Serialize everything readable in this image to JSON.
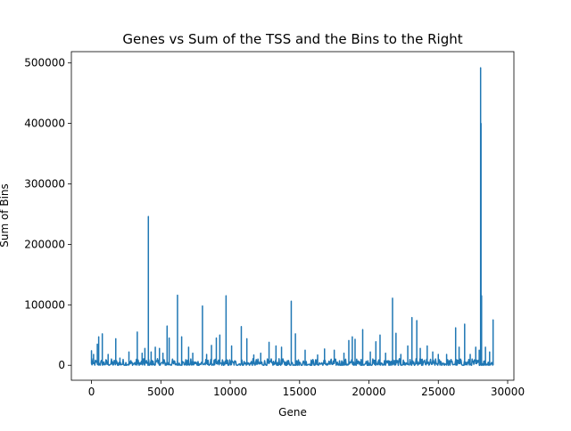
{
  "chart_data": {
    "type": "line",
    "title": "Genes vs Sum of the TSS and the Bins to the Right",
    "xlabel": "Gene",
    "ylabel": "Sum of Bins",
    "xlim": [
      -1450,
      30450
    ],
    "ylim": [
      -24700,
      518700
    ],
    "x_ticks": [
      0,
      5000,
      10000,
      15000,
      20000,
      25000,
      30000
    ],
    "x_tick_labels": [
      "0",
      "5000",
      "10000",
      "15000",
      "20000",
      "25000",
      "30000"
    ],
    "y_ticks": [
      0,
      100000,
      200000,
      300000,
      400000,
      500000
    ],
    "y_tick_labels": [
      "0",
      "100000",
      "200000",
      "300000",
      "400000",
      "500000"
    ],
    "grid": false,
    "series": [
      {
        "color": "#1f77b4",
        "baseline": 3000,
        "noise_range": [
          0,
          11000
        ],
        "x_range": [
          0,
          28960
        ],
        "spikes": [
          [
            0,
            24000
          ],
          [
            150,
            18000
          ],
          [
            420,
            35000
          ],
          [
            520,
            47000
          ],
          [
            780,
            52000
          ],
          [
            1200,
            18000
          ],
          [
            1750,
            44000
          ],
          [
            2050,
            12000
          ],
          [
            2700,
            22000
          ],
          [
            3300,
            55000
          ],
          [
            3650,
            20000
          ],
          [
            3850,
            28000
          ],
          [
            4100,
            246000
          ],
          [
            4300,
            22000
          ],
          [
            4600,
            30000
          ],
          [
            4900,
            28000
          ],
          [
            5150,
            20000
          ],
          [
            5450,
            65000
          ],
          [
            5600,
            45000
          ],
          [
            6200,
            116000
          ],
          [
            6500,
            47000
          ],
          [
            7000,
            30000
          ],
          [
            7300,
            20000
          ],
          [
            8000,
            98000
          ],
          [
            8300,
            18000
          ],
          [
            8650,
            33000
          ],
          [
            9000,
            45000
          ],
          [
            9250,
            50000
          ],
          [
            9700,
            115000
          ],
          [
            10100,
            32000
          ],
          [
            10800,
            64000
          ],
          [
            11200,
            44000
          ],
          [
            11700,
            17000
          ],
          [
            12200,
            20000
          ],
          [
            12800,
            38000
          ],
          [
            13300,
            32000
          ],
          [
            13700,
            30000
          ],
          [
            14400,
            106000
          ],
          [
            14700,
            52000
          ],
          [
            15400,
            25000
          ],
          [
            16300,
            17000
          ],
          [
            16800,
            27000
          ],
          [
            17500,
            25000
          ],
          [
            18200,
            20000
          ],
          [
            18550,
            41000
          ],
          [
            18800,
            47000
          ],
          [
            19000,
            43000
          ],
          [
            19550,
            59000
          ],
          [
            20100,
            22000
          ],
          [
            20500,
            39000
          ],
          [
            20800,
            50000
          ],
          [
            21200,
            20000
          ],
          [
            21700,
            111000
          ],
          [
            21950,
            53000
          ],
          [
            22300,
            18000
          ],
          [
            22800,
            32000
          ],
          [
            23100,
            79000
          ],
          [
            23450,
            74000
          ],
          [
            23700,
            28000
          ],
          [
            24200,
            32000
          ],
          [
            24600,
            22000
          ],
          [
            25000,
            18000
          ],
          [
            25600,
            18000
          ],
          [
            26250,
            62000
          ],
          [
            26500,
            30000
          ],
          [
            26900,
            68000
          ],
          [
            27300,
            18000
          ],
          [
            27700,
            30000
          ],
          [
            27950,
            25000
          ],
          [
            28050,
            492000
          ],
          [
            28080,
            400000
          ],
          [
            28120,
            115000
          ],
          [
            28400,
            30000
          ],
          [
            28700,
            22000
          ],
          [
            28950,
            75000
          ]
        ]
      }
    ]
  }
}
